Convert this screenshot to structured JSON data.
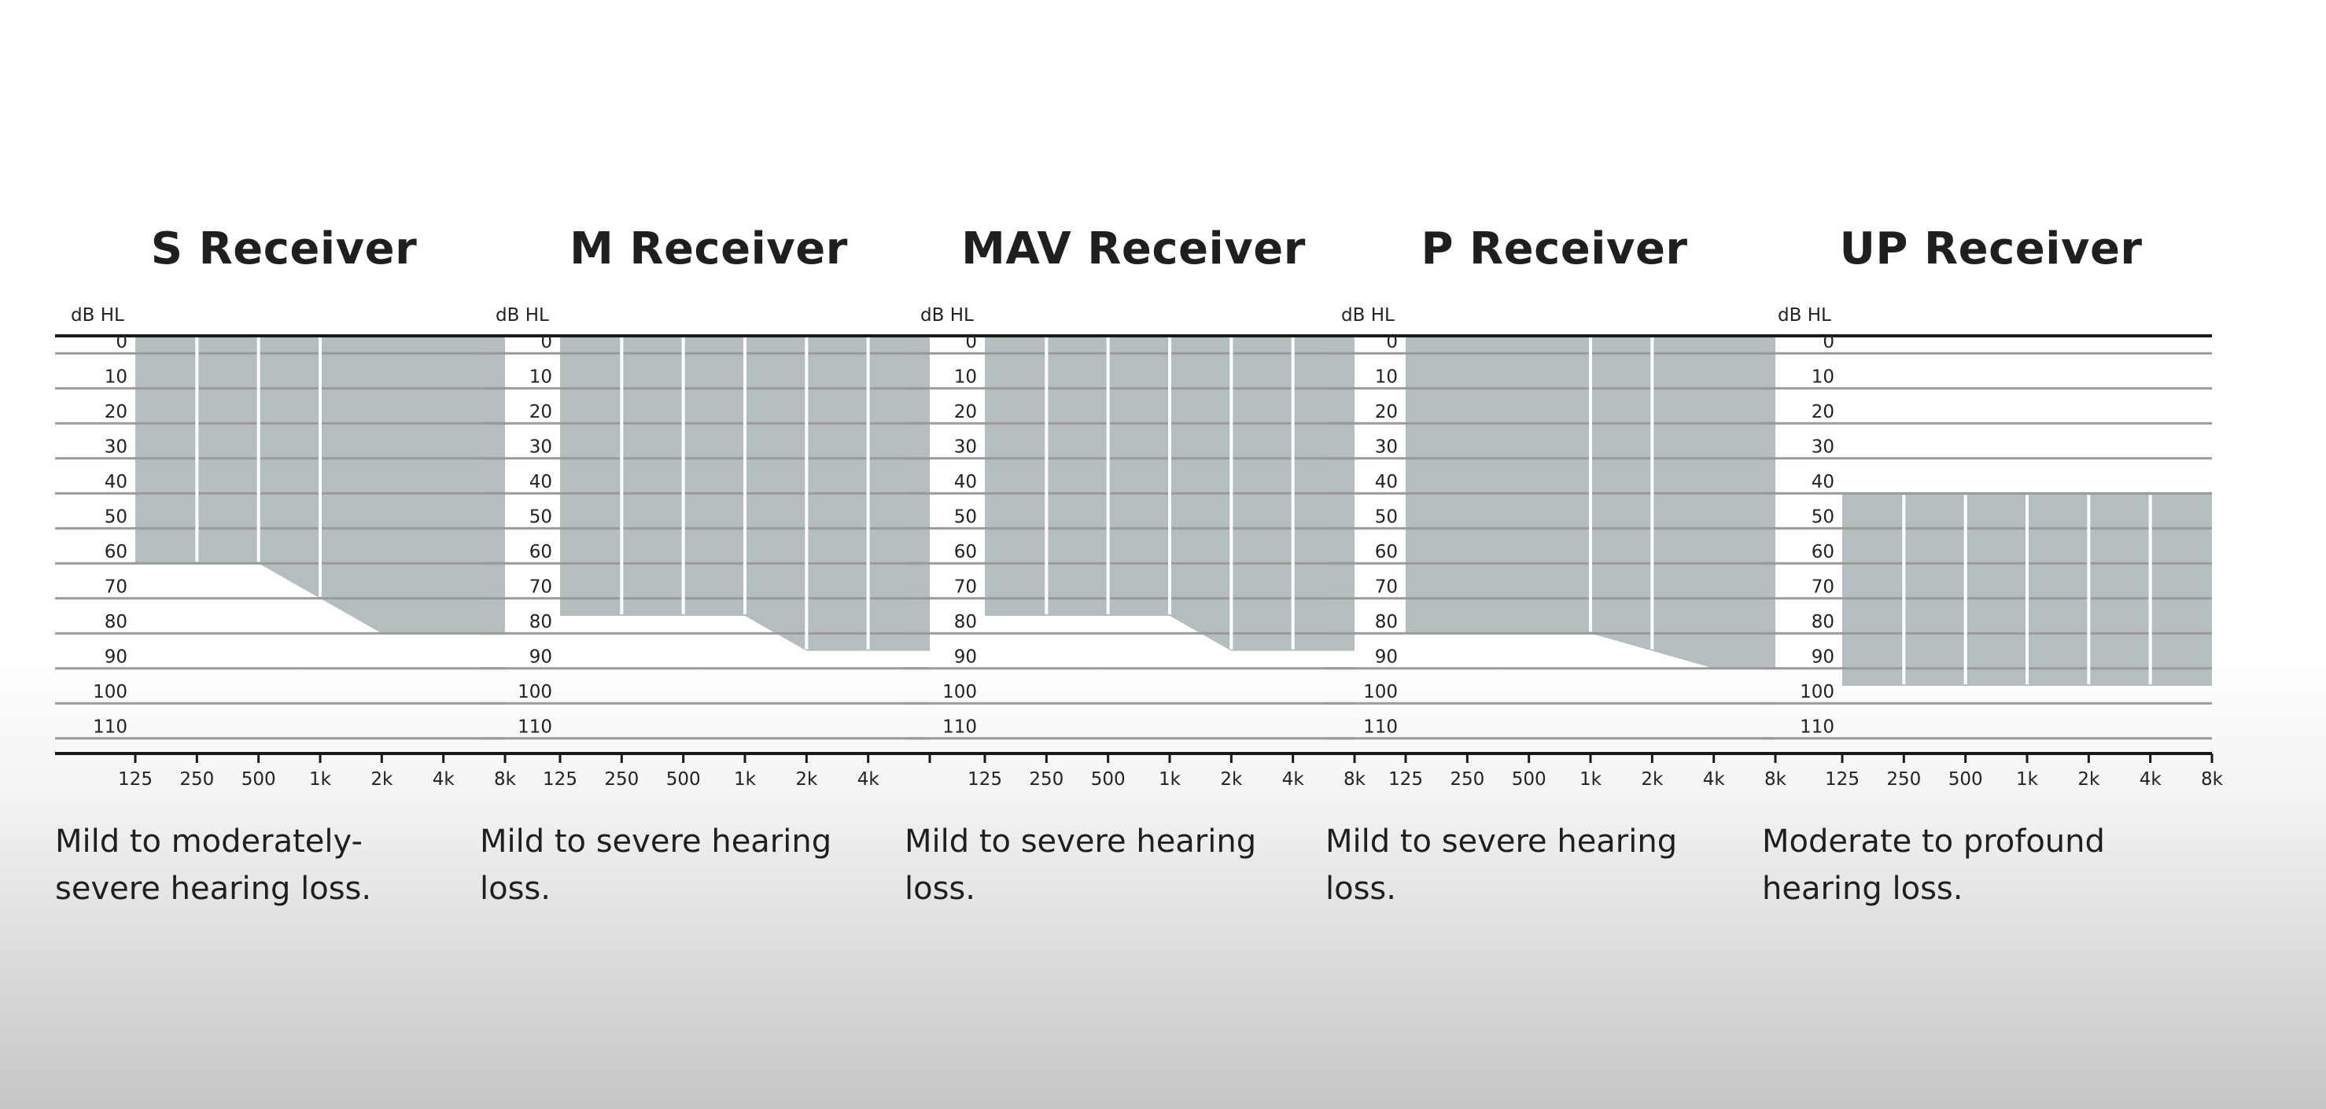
{
  "chart_data": [
    {
      "type": "area",
      "title": "S Receiver",
      "ylabel": "dB HL",
      "x_ticks": [
        "125",
        "250",
        "500",
        "1k",
        "2k",
        "4k",
        "8k"
      ],
      "y_ticks": [
        "0",
        "10",
        "20",
        "30",
        "40",
        "50",
        "60",
        "70",
        "80",
        "90",
        "100",
        "110"
      ],
      "ylim": [
        0,
        115
      ],
      "fitting_range": {
        "frequency_hz": [
          125,
          250,
          500,
          1000,
          2000,
          4000,
          8000
        ],
        "upper_db_hl": [
          0,
          0,
          0,
          0,
          0,
          0,
          0
        ],
        "lower_db_hl": [
          65,
          65,
          65,
          75,
          85,
          85,
          85
        ]
      },
      "caption": "Mild to moderately-severe hearing loss.",
      "white_dividers_at": [
        "250",
        "500",
        "1k"
      ]
    },
    {
      "type": "area",
      "title": "M Receiver",
      "ylabel": "dB HL",
      "x_ticks": [
        "125",
        "250",
        "500",
        "1k",
        "2k",
        "4k",
        ""
      ],
      "y_ticks": [
        "0",
        "10",
        "20",
        "30",
        "40",
        "50",
        "60",
        "70",
        "80",
        "90",
        "100",
        "110"
      ],
      "ylim": [
        0,
        115
      ],
      "fitting_range": {
        "frequency_hz": [
          125,
          250,
          500,
          1000,
          2000,
          4000,
          8000
        ],
        "upper_db_hl": [
          0,
          0,
          0,
          0,
          0,
          0,
          0
        ],
        "lower_db_hl": [
          80,
          80,
          80,
          80,
          90,
          90,
          90
        ]
      },
      "caption": "Mild to severe hearing loss.",
      "white_dividers_at": [
        "250",
        "500",
        "1k",
        "2k",
        "4k"
      ]
    },
    {
      "type": "area",
      "title": "MAV Receiver",
      "ylabel": "dB HL",
      "x_ticks": [
        "125",
        "250",
        "500",
        "1k",
        "2k",
        "4k",
        "8k"
      ],
      "y_ticks": [
        "0",
        "10",
        "20",
        "30",
        "40",
        "50",
        "60",
        "70",
        "80",
        "90",
        "100",
        "110"
      ],
      "ylim": [
        0,
        115
      ],
      "fitting_range": {
        "frequency_hz": [
          125,
          250,
          500,
          1000,
          2000,
          4000,
          8000
        ],
        "upper_db_hl": [
          0,
          0,
          0,
          0,
          0,
          0,
          0
        ],
        "lower_db_hl": [
          80,
          80,
          80,
          80,
          90,
          90,
          90
        ]
      },
      "caption": "Mild to severe hearing loss.",
      "white_dividers_at": [
        "250",
        "500",
        "1k",
        "2k",
        "4k"
      ]
    },
    {
      "type": "area",
      "title": "P Receiver",
      "ylabel": "dB HL",
      "x_ticks": [
        "125",
        "250",
        "500",
        "1k",
        "2k",
        "4k",
        "8k"
      ],
      "y_ticks": [
        "0",
        "10",
        "20",
        "30",
        "40",
        "50",
        "60",
        "70",
        "80",
        "90",
        "100",
        "110"
      ],
      "ylim": [
        0,
        115
      ],
      "fitting_range": {
        "frequency_hz": [
          125,
          250,
          500,
          1000,
          2000,
          4000,
          8000
        ],
        "upper_db_hl": [
          0,
          0,
          0,
          0,
          0,
          0,
          0
        ],
        "lower_db_hl": [
          85,
          85,
          85,
          85,
          90,
          95,
          95
        ]
      },
      "caption": "Mild to severe hearing loss.",
      "white_dividers_at": [
        "1k",
        "2k"
      ]
    },
    {
      "type": "area",
      "title": "UP Receiver",
      "ylabel": "dB HL",
      "x_ticks": [
        "125",
        "250",
        "500",
        "1k",
        "2k",
        "4k",
        "8k"
      ],
      "y_ticks": [
        "0",
        "10",
        "20",
        "30",
        "40",
        "50",
        "60",
        "70",
        "80",
        "90",
        "100",
        "110"
      ],
      "ylim": [
        0,
        115
      ],
      "fitting_range": {
        "frequency_hz": [
          125,
          250,
          500,
          1000,
          2000,
          4000,
          8000
        ],
        "upper_db_hl": [
          45,
          45,
          45,
          45,
          45,
          45,
          45
        ],
        "lower_db_hl": [
          100,
          100,
          100,
          100,
          100,
          100,
          100
        ]
      },
      "caption": "Moderate to profound hearing loss.",
      "white_dividers_at": [
        "250",
        "500",
        "1k",
        "2k",
        "4k"
      ]
    }
  ],
  "colors": {
    "fill": "#b5bebf",
    "gridline": "#9a9a9a",
    "axis": "#1a1a1a",
    "divider": "#ffffff",
    "text": "#1e1e1e"
  }
}
